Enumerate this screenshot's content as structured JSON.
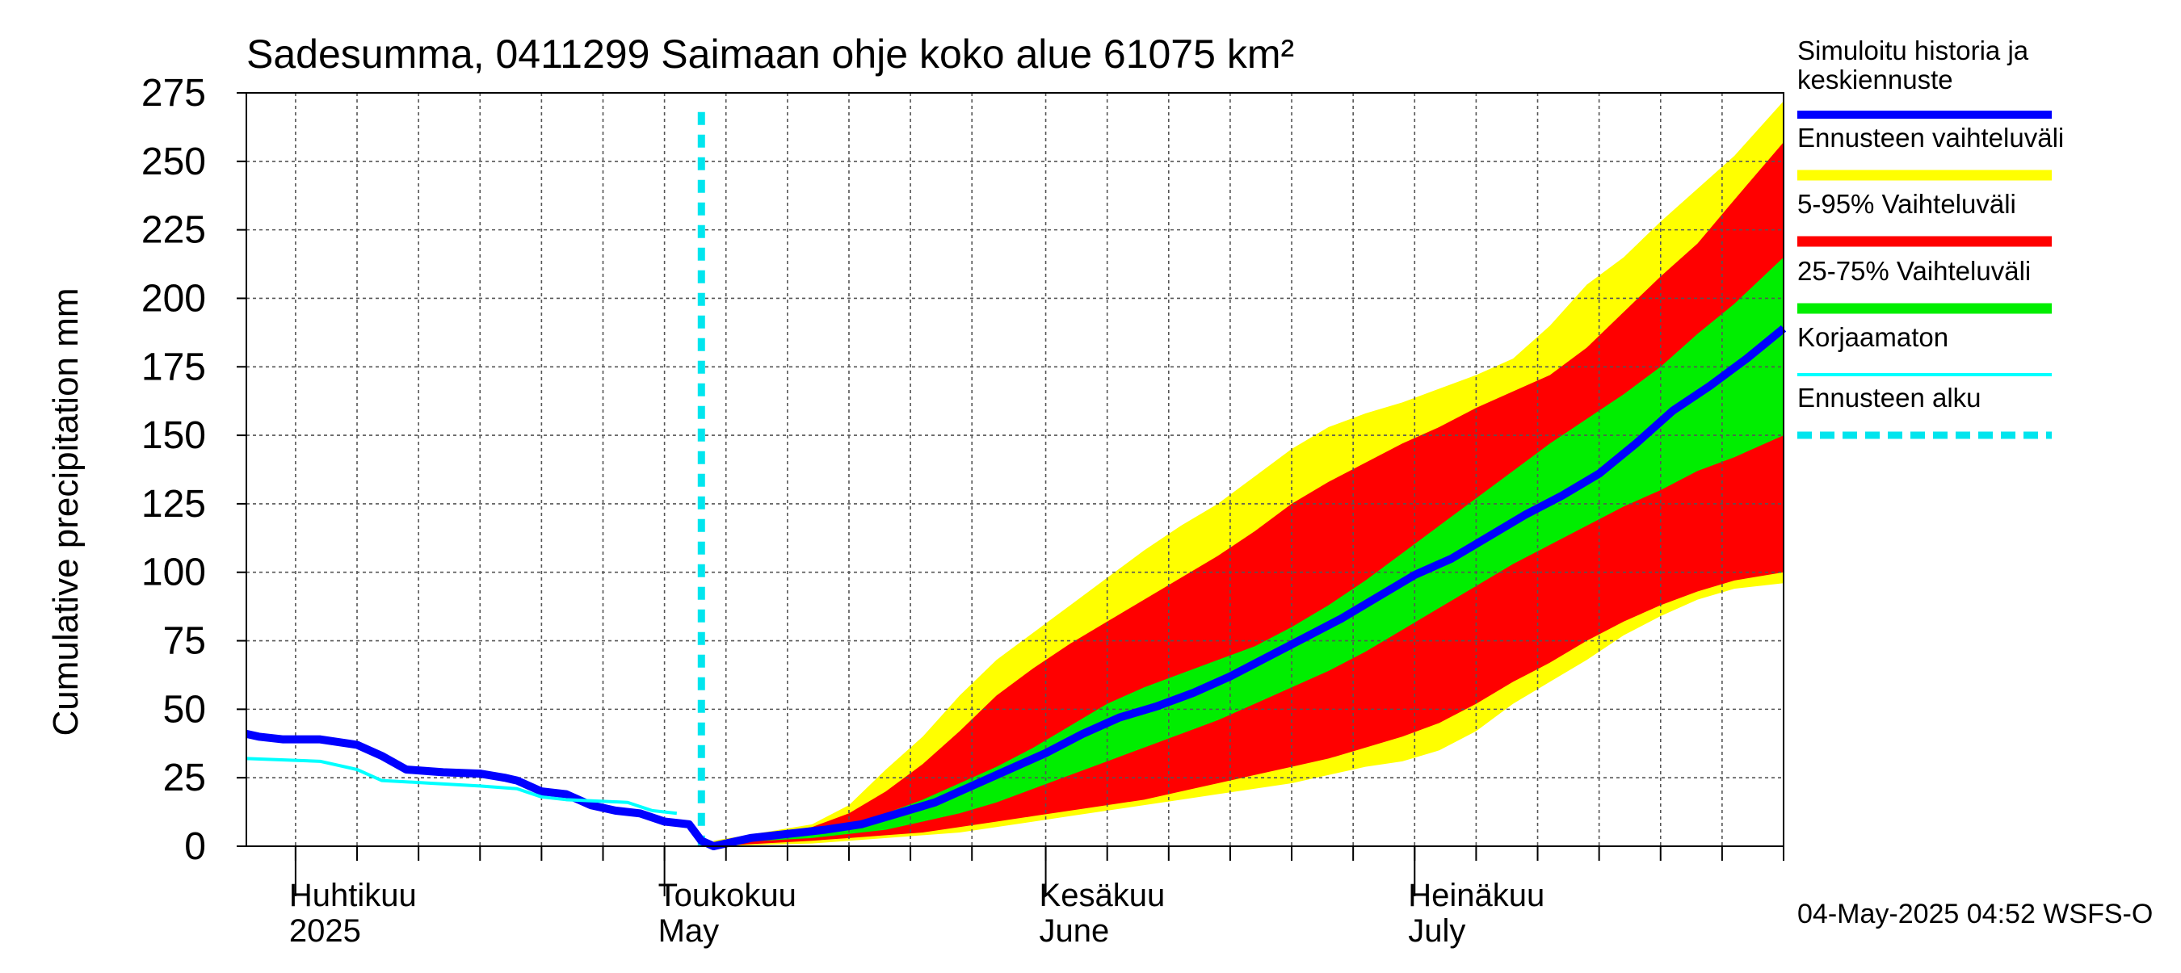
{
  "chart_data": {
    "type": "area",
    "title": "Sadesumma, 0411299 Saimaan ohje koko alue 61075 km²",
    "ylabel": "Cumulative precipitation   mm",
    "xlabel": "",
    "ylim": [
      0,
      275
    ],
    "yticks": [
      0,
      25,
      50,
      75,
      100,
      125,
      150,
      175,
      200,
      225,
      250,
      275
    ],
    "xlim": [
      "2025-03-28",
      "2025-07-31"
    ],
    "grid": true,
    "legend_position": "right",
    "x_tick_dates": [
      "2025-04-01",
      "2025-04-06",
      "2025-04-11",
      "2025-04-16",
      "2025-04-21",
      "2025-04-26",
      "2025-05-01",
      "2025-05-06",
      "2025-05-11",
      "2025-05-16",
      "2025-05-21",
      "2025-05-26",
      "2025-06-01",
      "2025-06-06",
      "2025-06-11",
      "2025-06-16",
      "2025-06-21",
      "2025-06-26",
      "2025-07-01",
      "2025-07-06",
      "2025-07-11",
      "2025-07-16",
      "2025-07-21",
      "2025-07-26",
      "2025-07-31"
    ],
    "month_labels": [
      {
        "date": "2025-04-01",
        "fi": "Huhtikuu",
        "en": "2025"
      },
      {
        "date": "2025-05-01",
        "fi": "Toukokuu",
        "en": "May"
      },
      {
        "date": "2025-06-01",
        "fi": "Kesäkuu",
        "en": "June"
      },
      {
        "date": "2025-07-01",
        "fi": "Heinäkuu",
        "en": "July"
      }
    ],
    "forecast_start": "2025-05-04",
    "footer": "04-May-2025 04:52 WSFS-O",
    "legend": [
      {
        "label": "Simuloitu historia ja keskiennuste",
        "color": "#0000ff",
        "style": "thick"
      },
      {
        "label": "Ennusteen vaihteluväli",
        "color": "#ffff00",
        "style": "band"
      },
      {
        "label": "5-95% Vaihteluväli",
        "color": "#ff0000",
        "style": "band"
      },
      {
        "label": "25-75% Vaihteluväli",
        "color": "#00ee00",
        "style": "band"
      },
      {
        "label": "Korjaamaton",
        "color": "#00ffff",
        "style": "thin"
      },
      {
        "label": "Ennusteen alku",
        "color": "#00e5ee",
        "style": "dashed"
      }
    ],
    "series": [
      {
        "name": "Simuloitu historia ja keskiennuste",
        "color": "#0000ff",
        "points": [
          [
            "2025-03-28",
            41
          ],
          [
            "2025-03-29",
            40
          ],
          [
            "2025-03-31",
            39
          ],
          [
            "2025-04-03",
            39
          ],
          [
            "2025-04-06",
            37
          ],
          [
            "2025-04-08",
            33
          ],
          [
            "2025-04-10",
            28
          ],
          [
            "2025-04-13",
            27
          ],
          [
            "2025-04-16",
            26.5
          ],
          [
            "2025-04-18",
            25
          ],
          [
            "2025-04-19",
            24
          ],
          [
            "2025-04-21",
            20
          ],
          [
            "2025-04-23",
            19
          ],
          [
            "2025-04-25",
            15
          ],
          [
            "2025-04-27",
            13
          ],
          [
            "2025-04-29",
            12
          ],
          [
            "2025-05-01",
            9
          ],
          [
            "2025-05-03",
            8
          ],
          [
            "2025-05-04",
            2
          ],
          [
            "2025-05-05",
            0
          ],
          [
            "2025-05-08",
            3
          ],
          [
            "2025-05-11",
            4.5
          ],
          [
            "2025-05-14",
            6
          ],
          [
            "2025-05-17",
            8
          ],
          [
            "2025-05-20",
            12
          ],
          [
            "2025-05-23",
            16
          ],
          [
            "2025-05-26",
            22
          ],
          [
            "2025-05-29",
            28
          ],
          [
            "2025-06-01",
            34
          ],
          [
            "2025-06-04",
            41
          ],
          [
            "2025-06-07",
            47
          ],
          [
            "2025-06-10",
            51
          ],
          [
            "2025-06-13",
            56
          ],
          [
            "2025-06-16",
            62
          ],
          [
            "2025-06-19",
            69
          ],
          [
            "2025-06-22",
            76
          ],
          [
            "2025-06-25",
            83
          ],
          [
            "2025-06-28",
            91
          ],
          [
            "2025-07-01",
            99
          ],
          [
            "2025-07-04",
            105
          ],
          [
            "2025-07-07",
            113
          ],
          [
            "2025-07-10",
            121
          ],
          [
            "2025-07-13",
            128
          ],
          [
            "2025-07-16",
            136
          ],
          [
            "2025-07-19",
            147
          ],
          [
            "2025-07-22",
            159
          ],
          [
            "2025-07-25",
            168
          ],
          [
            "2025-07-28",
            178
          ],
          [
            "2025-07-31",
            189
          ]
        ]
      },
      {
        "name": "Korjaamaton",
        "color": "#00ffff",
        "points": [
          [
            "2025-03-28",
            32
          ],
          [
            "2025-04-03",
            31
          ],
          [
            "2025-04-06",
            28
          ],
          [
            "2025-04-08",
            24
          ],
          [
            "2025-04-12",
            23
          ],
          [
            "2025-04-16",
            22
          ],
          [
            "2025-04-19",
            21
          ],
          [
            "2025-04-21",
            18
          ],
          [
            "2025-04-23",
            17
          ],
          [
            "2025-04-28",
            16
          ],
          [
            "2025-04-30",
            13
          ],
          [
            "2025-05-02",
            12
          ]
        ]
      }
    ],
    "bands": [
      {
        "name": "Ennusteen vaihteluväli",
        "color": "#ffff00",
        "x": [
          "2025-05-05",
          "2025-05-09",
          "2025-05-13",
          "2025-05-16",
          "2025-05-19",
          "2025-05-22",
          "2025-05-25",
          "2025-05-28",
          "2025-05-31",
          "2025-06-03",
          "2025-06-06",
          "2025-06-09",
          "2025-06-12",
          "2025-06-15",
          "2025-06-18",
          "2025-06-21",
          "2025-06-24",
          "2025-06-27",
          "2025-06-30",
          "2025-07-03",
          "2025-07-06",
          "2025-07-09",
          "2025-07-12",
          "2025-07-15",
          "2025-07-18",
          "2025-07-21",
          "2025-07-24",
          "2025-07-27",
          "2025-07-31"
        ],
        "lower": [
          0,
          0.5,
          1,
          2,
          3,
          4,
          5,
          7,
          9,
          11,
          13,
          15,
          17,
          19,
          21,
          23,
          26,
          29,
          31,
          35,
          42,
          52,
          60,
          68,
          77,
          84,
          90,
          94,
          96
        ],
        "upper": [
          2,
          5,
          8,
          15,
          28,
          40,
          55,
          68,
          78,
          88,
          98,
          108,
          117,
          125,
          135,
          145,
          153,
          158,
          162,
          167,
          172,
          178,
          190,
          205,
          215,
          228,
          240,
          252,
          272
        ]
      },
      {
        "name": "5-95% Vaihteluväli",
        "color": "#ff0000",
        "x": [
          "2025-05-05",
          "2025-05-09",
          "2025-05-13",
          "2025-05-16",
          "2025-05-19",
          "2025-05-22",
          "2025-05-25",
          "2025-05-28",
          "2025-05-31",
          "2025-06-03",
          "2025-06-06",
          "2025-06-09",
          "2025-06-12",
          "2025-06-15",
          "2025-06-18",
          "2025-06-21",
          "2025-06-24",
          "2025-06-27",
          "2025-06-30",
          "2025-07-03",
          "2025-07-06",
          "2025-07-09",
          "2025-07-12",
          "2025-07-15",
          "2025-07-18",
          "2025-07-21",
          "2025-07-24",
          "2025-07-27",
          "2025-07-31"
        ],
        "lower": [
          0,
          1,
          2,
          3,
          4,
          5,
          7,
          9,
          11,
          13,
          15,
          17,
          20,
          23,
          26,
          29,
          32,
          36,
          40,
          45,
          52,
          60,
          67,
          75,
          82,
          88,
          93,
          97,
          100
        ],
        "upper": [
          1.5,
          4,
          7,
          12,
          20,
          30,
          42,
          55,
          65,
          74,
          82,
          90,
          98,
          106,
          115,
          125,
          133,
          140,
          147,
          153,
          160,
          166,
          172,
          182,
          195,
          208,
          220,
          236,
          257
        ]
      },
      {
        "name": "25-75% Vaihteluväli",
        "color": "#00ee00",
        "x": [
          "2025-05-05",
          "2025-05-09",
          "2025-05-13",
          "2025-05-16",
          "2025-05-19",
          "2025-05-22",
          "2025-05-25",
          "2025-05-28",
          "2025-05-31",
          "2025-06-03",
          "2025-06-06",
          "2025-06-09",
          "2025-06-12",
          "2025-06-15",
          "2025-06-18",
          "2025-06-21",
          "2025-06-24",
          "2025-06-27",
          "2025-06-30",
          "2025-07-03",
          "2025-07-06",
          "2025-07-09",
          "2025-07-12",
          "2025-07-15",
          "2025-07-18",
          "2025-07-21",
          "2025-07-24",
          "2025-07-27",
          "2025-07-31"
        ],
        "lower": [
          0.5,
          2,
          3,
          4.5,
          6,
          9,
          12,
          16,
          21,
          26,
          31,
          36,
          41,
          46,
          52,
          58,
          64,
          71,
          79,
          87,
          95,
          103,
          110,
          117,
          124,
          130,
          137,
          142,
          150
        ],
        "upper": [
          1,
          3,
          5,
          8,
          12,
          17,
          23,
          29,
          36,
          44,
          52,
          58,
          63,
          68,
          73,
          80,
          88,
          97,
          107,
          117,
          127,
          137,
          147,
          156,
          165,
          175,
          187,
          198,
          215
        ]
      }
    ]
  }
}
